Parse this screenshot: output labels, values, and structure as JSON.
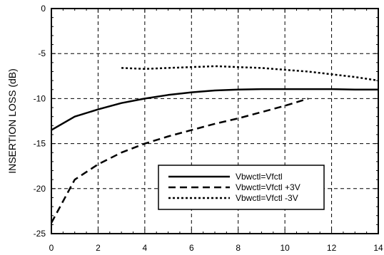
{
  "chart_data": {
    "type": "line",
    "title": "",
    "xlabel": "",
    "ylabel": "INSERTION LOSS (dB)",
    "xlim": [
      0,
      14
    ],
    "ylim": [
      -25,
      0
    ],
    "x_ticks": [
      "0",
      "2",
      "4",
      "6",
      "8",
      "10",
      "12",
      "14"
    ],
    "y_ticks": [
      "0",
      "-5",
      "-10",
      "-15",
      "-20",
      "-25"
    ],
    "grid": "dashed",
    "legend_position": "lower-right",
    "series": [
      {
        "name": "Vbwctl=Vfctl",
        "style": "solid",
        "x": [
          0,
          1,
          2,
          3,
          4,
          5,
          6,
          7,
          8,
          9,
          10,
          11,
          12,
          13,
          14
        ],
        "y": [
          -13.5,
          -12.0,
          -11.2,
          -10.5,
          -10.0,
          -9.6,
          -9.3,
          -9.1,
          -9.0,
          -8.95,
          -8.95,
          -8.95,
          -8.95,
          -9.0,
          -9.0
        ]
      },
      {
        "name": "Vbwctl=Vfctl +3V",
        "style": "dashed",
        "x": [
          0,
          1,
          2,
          3,
          4,
          5,
          6,
          7,
          8,
          9,
          10,
          11
        ],
        "y": [
          -23.8,
          -19.0,
          -17.3,
          -16.0,
          -15.0,
          -14.2,
          -13.5,
          -12.8,
          -12.2,
          -11.5,
          -10.8,
          -10.0
        ]
      },
      {
        "name": "Vbwctl=Vfctl -3V",
        "style": "dotted",
        "x": [
          3,
          4,
          5,
          6,
          7,
          8,
          9,
          10,
          11,
          12,
          13,
          14
        ],
        "y": [
          -6.6,
          -6.7,
          -6.6,
          -6.5,
          -6.4,
          -6.5,
          -6.6,
          -6.8,
          -7.0,
          -7.3,
          -7.6,
          -8.0
        ]
      }
    ]
  }
}
